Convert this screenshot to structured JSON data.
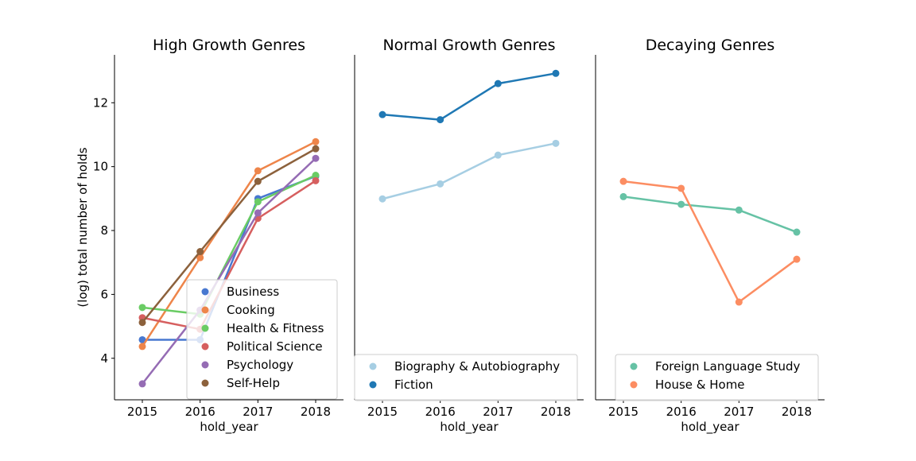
{
  "chart_data": [
    {
      "type": "line",
      "title": "High Growth Genres",
      "xlabel": "hold_year",
      "ylabel": "(log) total number of holds",
      "categories": [
        "2015",
        "2016",
        "2017",
        "2018"
      ],
      "ylim": [
        2.7,
        13.5
      ],
      "yticks": [
        4,
        6,
        8,
        10,
        12
      ],
      "grid": false,
      "legend_position": "bottom-right",
      "series": [
        {
          "name": "Business",
          "color": "#4878d0",
          "values": [
            4.58,
            4.58,
            9.0,
            9.7
          ]
        },
        {
          "name": "Cooking",
          "color": "#ee854a",
          "values": [
            4.37,
            7.15,
            9.87,
            10.78
          ]
        },
        {
          "name": "Health & Fitness",
          "color": "#6acc64",
          "values": [
            5.59,
            5.38,
            8.9,
            9.73
          ]
        },
        {
          "name": "Political Science",
          "color": "#d65f5f",
          "values": [
            5.27,
            4.91,
            8.38,
            9.56
          ]
        },
        {
          "name": "Psychology",
          "color": "#956cb4",
          "values": [
            3.2,
            5.51,
            8.55,
            10.26
          ]
        },
        {
          "name": "Self-Help",
          "color": "#8c613c",
          "values": [
            5.12,
            7.34,
            9.54,
            10.56
          ]
        }
      ]
    },
    {
      "type": "line",
      "title": "Normal Growth Genres",
      "xlabel": "hold_year",
      "ylabel": "",
      "categories": [
        "2015",
        "2016",
        "2017",
        "2018"
      ],
      "ylim": [
        2.7,
        13.5
      ],
      "grid": false,
      "legend_position": "bottom",
      "series": [
        {
          "name": "Biography & Autobiography",
          "color": "#a6cee3",
          "values": [
            8.99,
            9.46,
            10.36,
            10.73
          ]
        },
        {
          "name": "Fiction",
          "color": "#1f78b4",
          "values": [
            11.63,
            11.47,
            12.6,
            12.92
          ]
        }
      ]
    },
    {
      "type": "line",
      "title": "Decaying Genres",
      "xlabel": "hold_year",
      "ylabel": "",
      "categories": [
        "2015",
        "2016",
        "2017",
        "2018"
      ],
      "ylim": [
        2.7,
        13.5
      ],
      "grid": false,
      "legend_position": "bottom",
      "series": [
        {
          "name": "Foreign Language Study",
          "color": "#66c2a5",
          "values": [
            9.06,
            8.82,
            8.64,
            7.95
          ]
        },
        {
          "name": "House & Home",
          "color": "#fc8d62",
          "values": [
            9.54,
            9.32,
            5.76,
            7.1
          ]
        }
      ]
    }
  ]
}
